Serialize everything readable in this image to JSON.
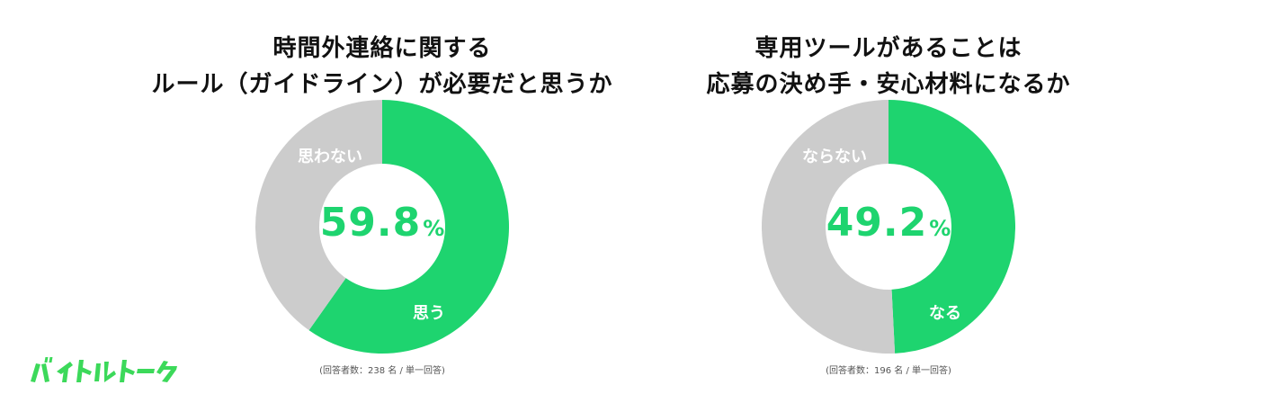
{
  "brand": {
    "logo_text": "バイトルトーク",
    "color": "#3cd95a"
  },
  "colors": {
    "primary": "#1ed46f",
    "secondary": "#cccccc"
  },
  "charts": [
    {
      "title_line1": "時間外連絡に関する",
      "title_line2": "ルール（ガイドライン）が必要だと思うか",
      "center_value": "59.8",
      "center_unit": "%",
      "primary_label": "思う",
      "secondary_label": "思わない",
      "note": "(回答者数：238 名 / 単一回答)"
    },
    {
      "title_line1": "専用ツールがあることは",
      "title_line2": "応募の決め手・安心材料になるか",
      "center_value": "49.2",
      "center_unit": "%",
      "primary_label": "なる",
      "secondary_label": "ならない",
      "note": "(回答者数：196 名 / 単一回答)"
    }
  ],
  "chart_data": [
    {
      "type": "pie",
      "title": "時間外連絡に関するルール（ガイドライン）が必要だと思うか",
      "categories": [
        "思う",
        "思わない"
      ],
      "values": [
        59.8,
        40.2
      ],
      "unit": "%",
      "respondents": 238
    },
    {
      "type": "pie",
      "title": "専用ツールがあることは応募の決め手・安心材料になるか",
      "categories": [
        "なる",
        "ならない"
      ],
      "values": [
        49.2,
        50.8
      ],
      "unit": "%",
      "respondents": 196
    }
  ]
}
